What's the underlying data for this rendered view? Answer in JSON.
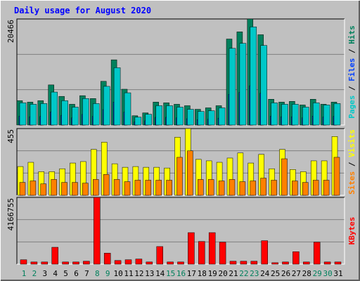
{
  "separator": "/",
  "chart_data": [
    {
      "type": "bar",
      "title": "Daily usage for August 2020",
      "ylim": [
        0,
        20466
      ],
      "yticks": [
        20466
      ],
      "series": [
        {
          "name": "Hits",
          "color": "#00805c",
          "values": [
            4702,
            4426,
            4702,
            7745,
            5532,
            4011,
            5670,
            5117,
            8436,
            12585,
            6915,
            1798,
            2351,
            4426,
            4287,
            4011,
            3734,
            3043,
            3319,
            3734,
            16596,
            17979,
            20466,
            17426,
            4979,
            4426,
            4564,
            3872,
            4979,
            4011,
            4426
          ]
        },
        {
          "name": "Files",
          "color": "#0040ff",
          "values": [
            1715,
            1604,
            1660,
            2545,
            1881,
            1383,
            2047,
            1660,
            2987,
            4426,
            2490,
            608,
            830,
            1494,
            1494,
            1383,
            1217,
            1051,
            1106,
            1328,
            5919,
            6306,
            7579,
            6140,
            1715,
            1604,
            1604,
            1383,
            1715,
            1549,
            1660
          ]
        },
        {
          "name": "Pages",
          "color": "#00c8c8",
          "values": [
            4287,
            4011,
            4149,
            6362,
            4702,
            3458,
            5117,
            4149,
            7468,
            11064,
            6224,
            1521,
            2074,
            3734,
            3734,
            3458,
            3043,
            2628,
            2766,
            3319,
            14798,
            15766,
            18947,
            15351,
            4287,
            4011,
            4011,
            3458,
            4287,
            3872,
            4149
          ]
        }
      ]
    },
    {
      "type": "bar",
      "ylim": [
        0,
        455
      ],
      "yticks": [
        455
      ],
      "series": [
        {
          "name": "Visits",
          "color": "#ffff00",
          "values": [
            196,
            225,
            161,
            161,
            181,
            220,
            230,
            313,
            362,
            215,
            191,
            196,
            191,
            191,
            186,
            396,
            455,
            245,
            235,
            225,
            254,
            289,
            220,
            279,
            181,
            313,
            176,
            161,
            235,
            235,
            401
          ]
        },
        {
          "name": "Sites",
          "color": "#ff8000",
          "values": [
            88,
            98,
            78,
            108,
            88,
            88,
            83,
            108,
            142,
            108,
            93,
            103,
            103,
            103,
            103,
            259,
            303,
            108,
            108,
            98,
            108,
            93,
            98,
            117,
            103,
            249,
            98,
            88,
            103,
            103,
            259
          ]
        }
      ]
    },
    {
      "type": "bar",
      "ylim": [
        0,
        4166755
      ],
      "yticks": [
        4166755
      ],
      "categories": [
        "1",
        "2",
        "3",
        "4",
        "5",
        "6",
        "7",
        "8",
        "9",
        "10",
        "11",
        "12",
        "13",
        "14",
        "15",
        "16",
        "17",
        "18",
        "19",
        "20",
        "21",
        "22",
        "23",
        "24",
        "25",
        "26",
        "27",
        "28",
        "29",
        "30",
        "31"
      ],
      "category_label_colors": [
        "#00805c",
        "#00805c",
        "#000000",
        "#000000",
        "#000000",
        "#000000",
        "#000000",
        "#00805c",
        "#00805c",
        "#000000",
        "#000000",
        "#000000",
        "#000000",
        "#000000",
        "#00805c",
        "#00805c",
        "#000000",
        "#000000",
        "#000000",
        "#000000",
        "#000000",
        "#00805c",
        "#00805c",
        "#000000",
        "#000000",
        "#000000",
        "#000000",
        "#000000",
        "#00805c",
        "#00805c",
        "#000000"
      ],
      "series": [
        {
          "name": "KBytes",
          "color": "#ff0000",
          "values": [
            275000,
            137000,
            137000,
            1053000,
            137000,
            137000,
            183000,
            4166755,
            687000,
            229000,
            275000,
            321000,
            137000,
            1099000,
            137000,
            137000,
            1969000,
            1419000,
            1969000,
            1374000,
            183000,
            183000,
            183000,
            1465000,
            92000,
            137000,
            778000,
            137000,
            1374000,
            137000,
            137000
          ]
        }
      ]
    }
  ]
}
